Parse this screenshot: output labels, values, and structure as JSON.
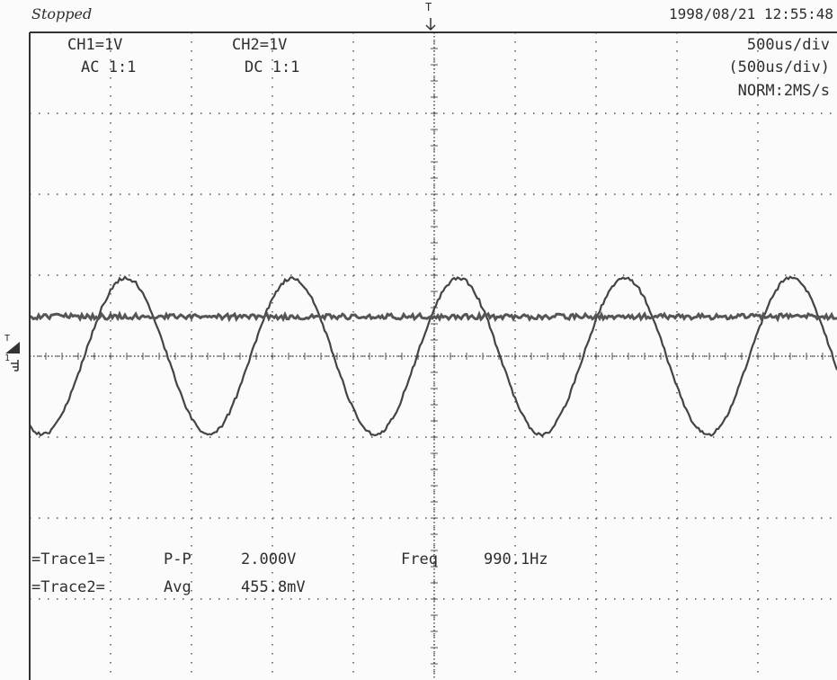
{
  "header": {
    "status": "Stopped",
    "timestamp": "1998/08/21 12:55:48"
  },
  "channels": [
    {
      "scale": "CH1=1V",
      "coupling": "AC 1:1"
    },
    {
      "scale": "CH2=1V",
      "coupling": "DC 1:1"
    }
  ],
  "timebase": [
    "500us/div",
    "(500us/div)",
    "NORM:2MS/s"
  ],
  "markers": {
    "trigger_top": "T",
    "trigger_left": "T",
    "ground_left": "1"
  },
  "measurements": [
    {
      "trace": "=Trace1=",
      "kind": "P-P",
      "value": "2.000V",
      "extra_label": "Freq",
      "extra_value": "990.1Hz"
    },
    {
      "trace": "=Trace2=",
      "kind": "Avg",
      "value": "455.8mV"
    }
  ]
}
